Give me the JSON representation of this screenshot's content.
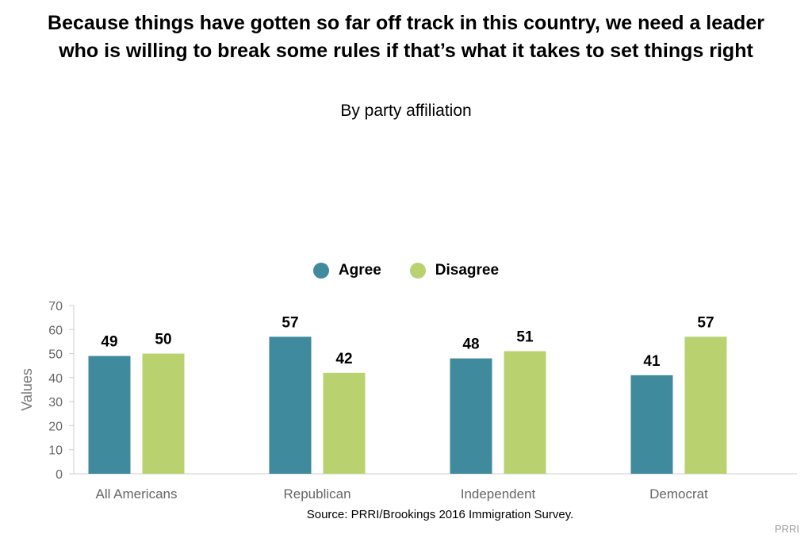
{
  "chart_data": {
    "type": "bar",
    "title": "Because things have gotten so far off track in this country, we need a leader who is willing to break some rules if that’s what it takes to set things right",
    "subtitle": "By party affiliation",
    "categories": [
      "All Americans",
      "Republican",
      "Independent",
      "Democrat"
    ],
    "series": [
      {
        "name": "Agree",
        "values": [
          49,
          57,
          48,
          41
        ],
        "color": "#3f8a9d"
      },
      {
        "name": "Disagree",
        "values": [
          50,
          42,
          51,
          57
        ],
        "color": "#b9d26f"
      }
    ],
    "ylabel": "Values",
    "xlabel": "",
    "ylim": [
      0,
      70
    ],
    "yticks": [
      "0",
      "10",
      "20",
      "30",
      "40",
      "50",
      "60",
      "70"
    ],
    "legend_position": "top-center",
    "data_labels": true,
    "grid": false
  },
  "source": "Source: PRRI/Brookings 2016 Immigration Survey.",
  "credit": "PRRI"
}
